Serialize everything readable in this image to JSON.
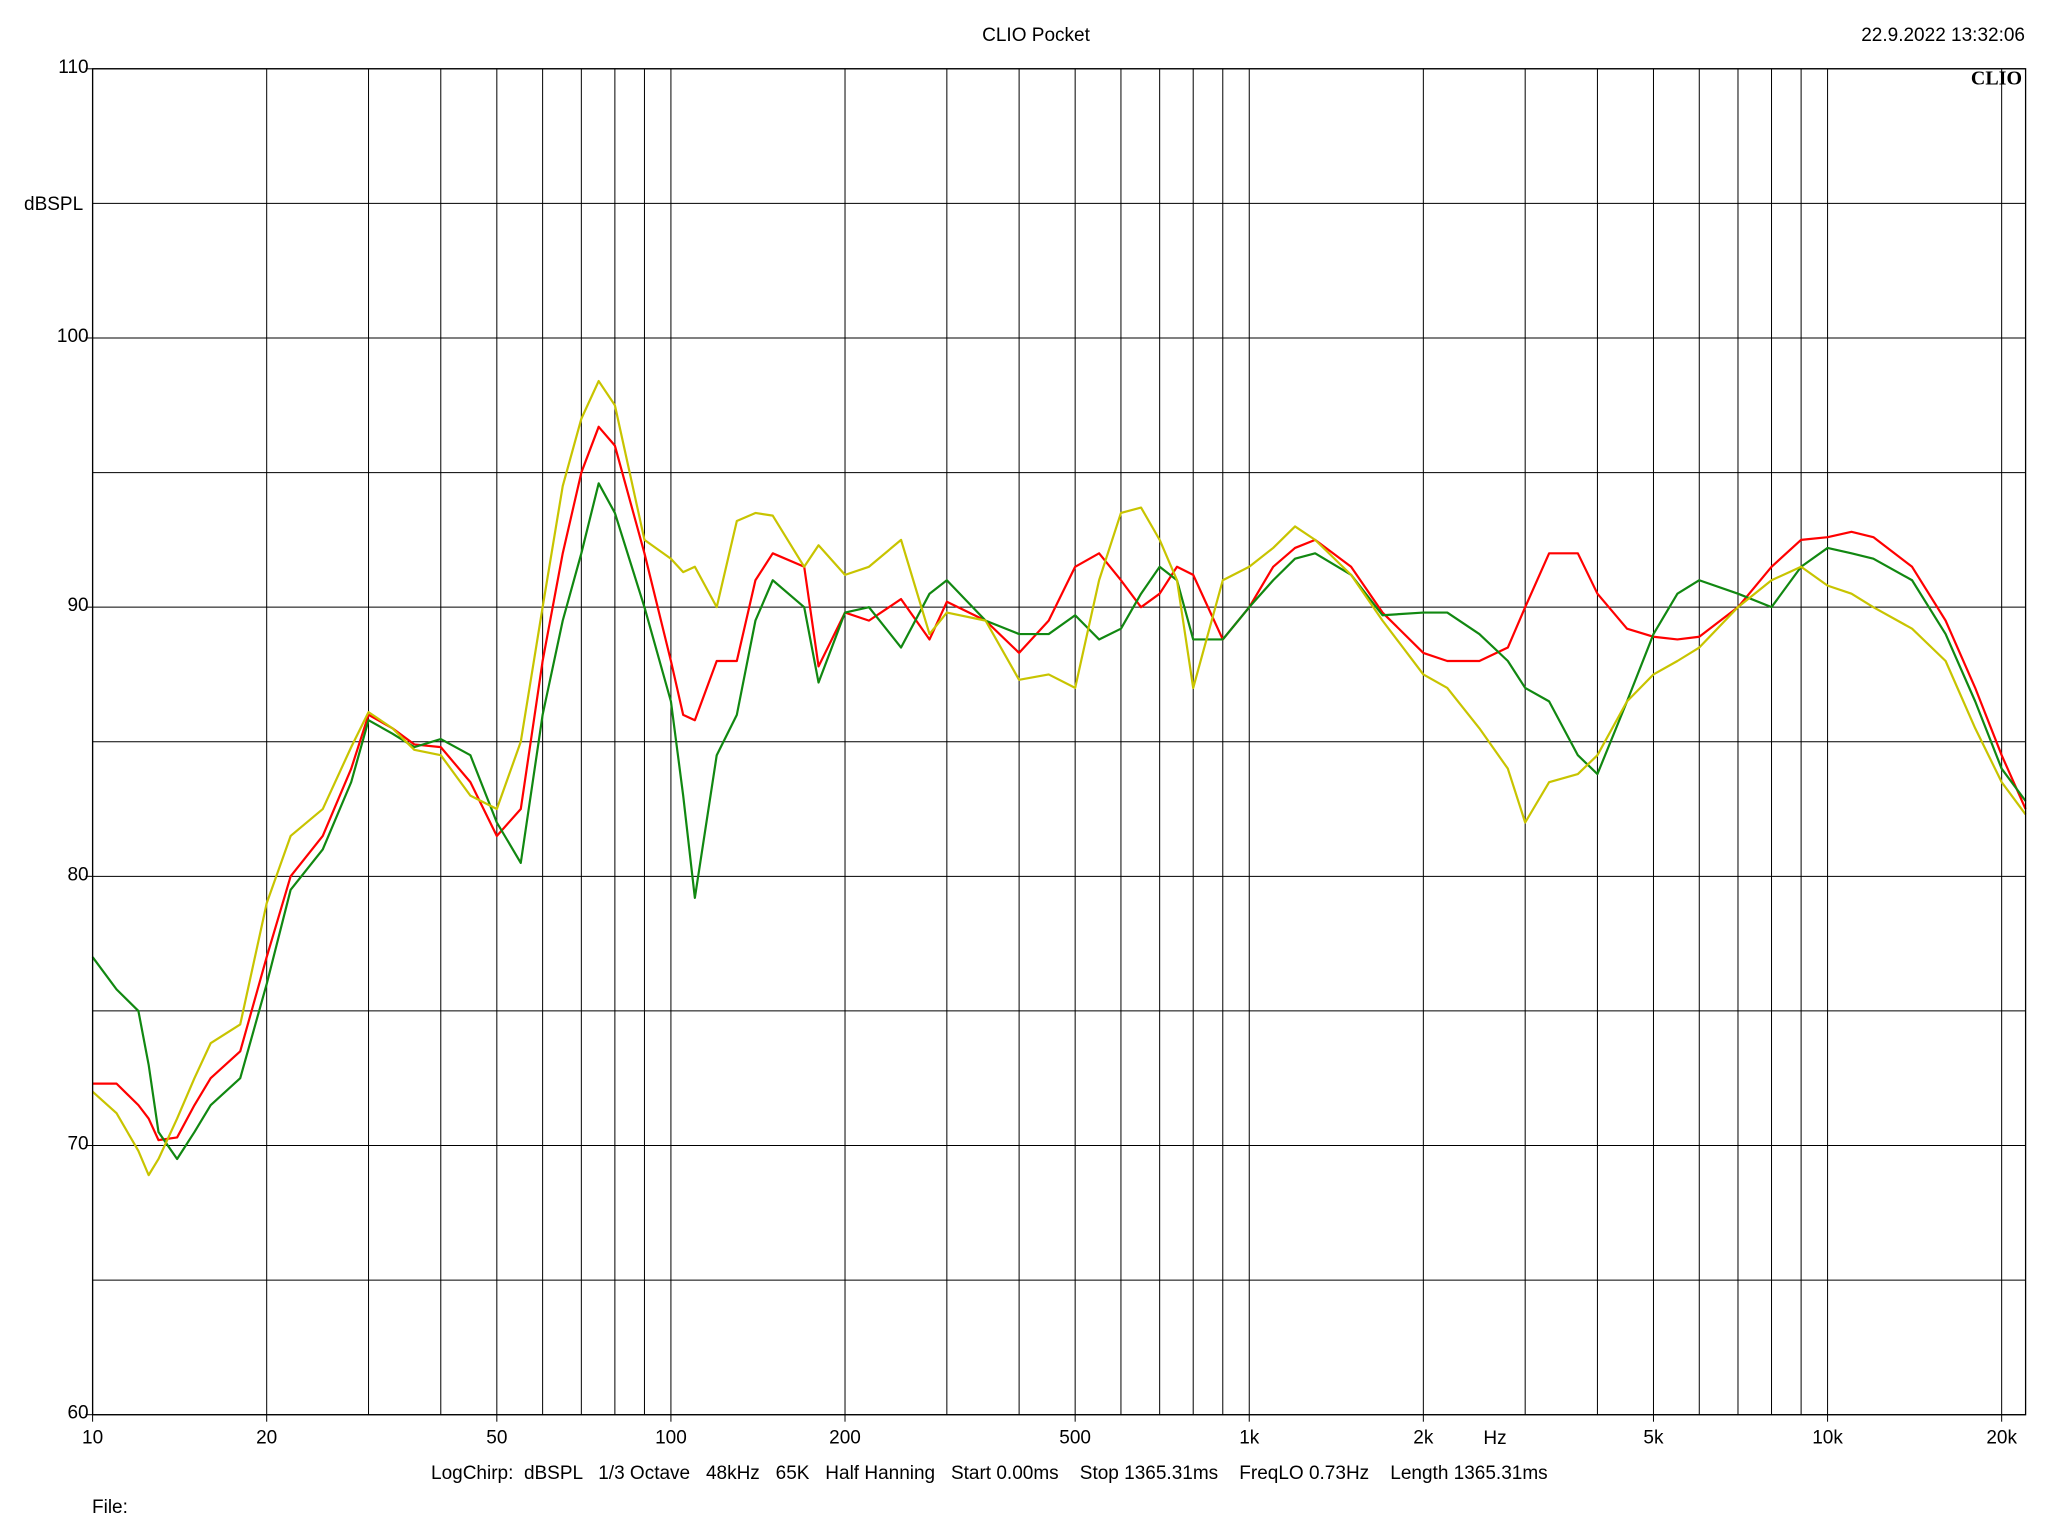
{
  "chart_data": {
    "type": "line",
    "title": "CLIO Pocket",
    "timestamp": "22.9.2022 13:32:06",
    "logo": "CLIO",
    "y_label": "dBSPL",
    "x_label": "Hz",
    "footer": "LogChirp:  dBSPL   1/3 Octave   48kHz   65K   Half Hanning   Start 0.00ms    Stop 1365.31ms    FreqLO 0.73Hz    Length 1365.31ms",
    "file_label": "File:",
    "xscale": "log",
    "grid": true,
    "xlim": [
      10,
      22000
    ],
    "ylim": [
      60,
      110
    ],
    "xticks": [
      10,
      20,
      50,
      100,
      200,
      500,
      {
        "value": 1000,
        "label": "1k"
      },
      {
        "value": 2000,
        "label": "2k"
      },
      {
        "value": 5000,
        "label": "5k"
      },
      {
        "value": 10000,
        "label": "10k"
      },
      {
        "value": 20000,
        "label": "20k"
      }
    ],
    "xgrid": [
      30,
      40,
      60,
      70,
      80,
      90,
      300,
      400,
      600,
      700,
      800,
      900,
      3000,
      4000,
      6000,
      7000,
      8000,
      9000
    ],
    "yticks": [
      60,
      70,
      80,
      90,
      100,
      110
    ],
    "ygrid": [
      65,
      75,
      85,
      95,
      105
    ],
    "x": [
      10,
      11,
      12,
      12.5,
      13,
      14,
      15,
      16,
      18,
      20,
      22,
      25,
      28,
      30,
      33,
      36,
      40,
      45,
      50,
      55,
      60,
      65,
      70,
      75,
      80,
      90,
      100,
      105,
      110,
      120,
      130,
      140,
      150,
      170,
      180,
      200,
      220,
      250,
      280,
      300,
      350,
      400,
      450,
      500,
      550,
      600,
      650,
      700,
      750,
      800,
      900,
      1000,
      1100,
      1200,
      1300,
      1500,
      1700,
      2000,
      2200,
      2500,
      2800,
      3000,
      3300,
      3700,
      4000,
      4500,
      5000,
      5500,
      6000,
      7000,
      8000,
      9000,
      10000,
      11000,
      12000,
      14000,
      16000,
      18000,
      20000,
      22000
    ],
    "series": [
      {
        "color": "#ff0000",
        "values": [
          72.3,
          72.3,
          71.5,
          71,
          70.2,
          70.3,
          71.5,
          72.5,
          73.5,
          77,
          80,
          81.5,
          84,
          86,
          85.5,
          84.9,
          84.8,
          83.5,
          81.5,
          82.5,
          88,
          92,
          95,
          96.7,
          96,
          92,
          88,
          86,
          85.8,
          88,
          88,
          91,
          92,
          91.5,
          87.8,
          89.8,
          89.5,
          90.3,
          88.8,
          90.2,
          89.5,
          88.3,
          89.5,
          91.5,
          92,
          91,
          90,
          90.5,
          91.5,
          91.2,
          88.8,
          90,
          91.5,
          92.2,
          92.5,
          91.5,
          89.8,
          88.3,
          88,
          88,
          88.5,
          90,
          92,
          92,
          90.5,
          89.2,
          88.9,
          88.8,
          88.9,
          90,
          91.5,
          92.5,
          92.6,
          92.8,
          92.6,
          91.5,
          89.5,
          87,
          84.5,
          82.5
        ]
      },
      {
        "color": "#118811",
        "values": [
          77,
          75.8,
          75,
          73,
          70.5,
          69.5,
          70.5,
          71.5,
          72.5,
          76,
          79.5,
          81,
          83.5,
          85.8,
          85.3,
          84.8,
          85.1,
          84.5,
          82,
          80.5,
          86,
          89.5,
          92,
          94.6,
          93.5,
          90,
          86.5,
          83,
          79.2,
          84.5,
          86,
          89.5,
          91,
          90,
          87.2,
          89.8,
          90,
          88.5,
          90.5,
          91,
          89.5,
          89,
          89,
          89.7,
          88.8,
          89.2,
          90.5,
          91.5,
          91,
          88.8,
          88.8,
          90,
          91,
          91.8,
          92,
          91.2,
          89.7,
          89.8,
          89.8,
          89,
          88,
          87,
          86.5,
          84.5,
          83.8,
          86.5,
          89,
          90.5,
          91,
          90.5,
          90,
          91.5,
          92.2,
          92,
          91.8,
          91,
          89,
          86.5,
          84,
          82.8
        ]
      },
      {
        "color": "#c8c400",
        "values": [
          72,
          71.2,
          69.8,
          68.9,
          69.5,
          71,
          72.5,
          73.8,
          74.5,
          79,
          81.5,
          82.5,
          84.8,
          86.1,
          85.5,
          84.7,
          84.5,
          83,
          82.5,
          85,
          90,
          94.5,
          97,
          98.4,
          97.5,
          92.5,
          91.8,
          91.3,
          91.5,
          90,
          93.2,
          93.5,
          93.4,
          91.5,
          92.3,
          91.2,
          91.5,
          92.5,
          89,
          89.8,
          89.5,
          87.3,
          87.5,
          87,
          91,
          93.5,
          93.7,
          92.5,
          91,
          87,
          91,
          91.5,
          92.2,
          93,
          92.5,
          91.2,
          89.5,
          87.5,
          87,
          85.5,
          84,
          82,
          83.5,
          83.8,
          84.5,
          86.5,
          87.5,
          88,
          88.5,
          90,
          91,
          91.5,
          90.8,
          90.5,
          90,
          89.2,
          88,
          85.5,
          83.5,
          82.3
        ]
      }
    ]
  }
}
